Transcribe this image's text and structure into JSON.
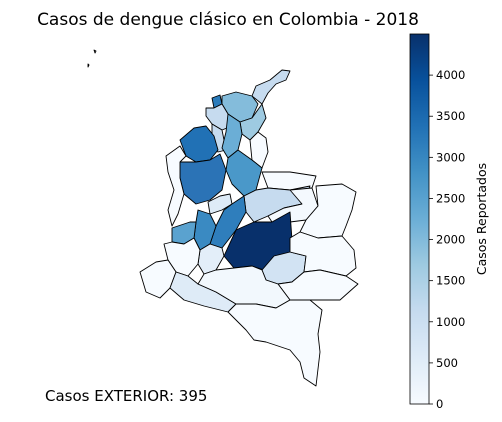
{
  "title": "Casos de dengue clásico en Colombia - 2018",
  "exterior_note": "Casos EXTERIOR: 395",
  "colorbar": {
    "label": "Casos Reportados",
    "min": 0,
    "max": 4500,
    "ticks": [
      "0",
      "500",
      "1000",
      "1500",
      "2000",
      "2500",
      "3000",
      "3500",
      "4000"
    ],
    "colormap": "Blues",
    "colors": {
      "low": "#f7fbff",
      "mid": "#6baed6",
      "high": "#08306b"
    }
  },
  "map": {
    "country": "Colombia",
    "region_count": 33,
    "regions": [
      {
        "cases": 4450
      },
      {
        "cases": 3750
      },
      {
        "cases": 3600
      },
      {
        "cases": 3400
      },
      {
        "cases": 3200
      },
      {
        "cases": 2900
      },
      {
        "cases": 2600
      },
      {
        "cases": 2300
      },
      {
        "cases": 2000
      },
      {
        "cases": 1700
      },
      {
        "cases": 1400
      },
      {
        "cases": 1000
      },
      {
        "cases": 700
      },
      {
        "cases": 400
      },
      {
        "cases": 250
      },
      {
        "cases": 150
      },
      {
        "cases": 120
      },
      {
        "cases": 100
      },
      {
        "cases": 80
      },
      {
        "cases": 60
      },
      {
        "cases": 40
      },
      {
        "cases": 30
      },
      {
        "cases": 20
      },
      {
        "cases": 10
      },
      {
        "cases": 5
      }
    ]
  }
}
